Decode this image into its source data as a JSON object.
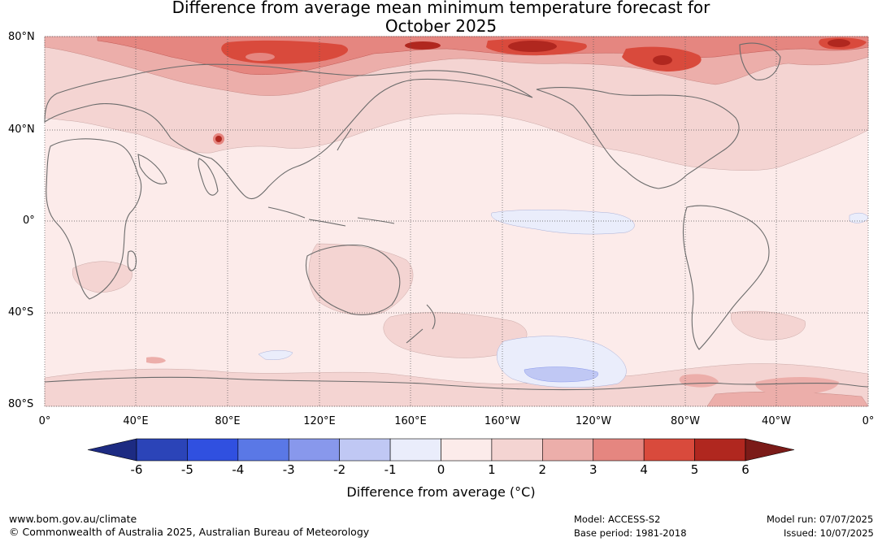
{
  "title_line1": "Difference from average mean minimum temperature forecast for",
  "title_line2": "October 2025",
  "lat_labels": [
    "80°N",
    "40°N",
    "0°",
    "40°S",
    "80°S"
  ],
  "lon_labels": [
    "0°",
    "40°E",
    "80°E",
    "120°E",
    "160°E",
    "160°W",
    "120°W",
    "80°W",
    "40°W",
    "0°"
  ],
  "colorbar": {
    "ticks": [
      "-6",
      "-5",
      "-4",
      "-3",
      "-2",
      "-1",
      "0",
      "1",
      "2",
      "3",
      "4",
      "5",
      "6"
    ],
    "colors": [
      "#1d2b82",
      "#2b44b8",
      "#3050e0",
      "#5a78e6",
      "#8898ec",
      "#c0c8f4",
      "#eaedfb",
      "#fcebea",
      "#f4d4d2",
      "#ecaeaa",
      "#e58680",
      "#d94a3c",
      "#b0271f",
      "#7b1b18"
    ],
    "label": "Difference from average (°C)"
  },
  "footer": {
    "url": "www.bom.gov.au/climate",
    "copyright": "© Commonwealth of Australia 2025, Australian Bureau of Meteorology",
    "model": "Model: ACCESS-S2",
    "base_period": "Base period: 1981-2018",
    "model_run": "Model run: 07/07/2025",
    "issued": "Issued: 10/07/2025"
  }
}
